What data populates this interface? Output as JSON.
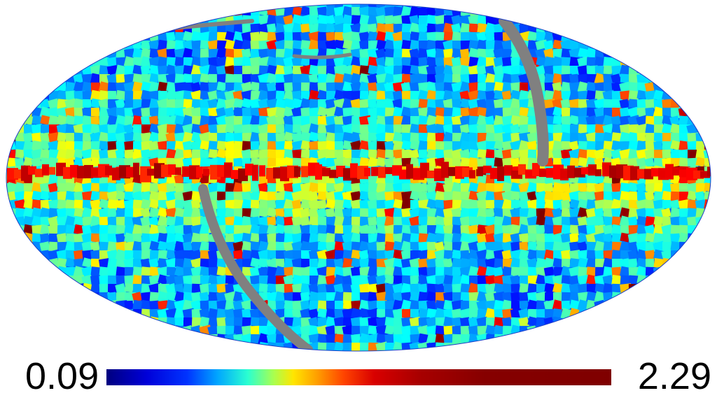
{
  "map": {
    "projection": "mollweide",
    "masked_color": "#808080",
    "colormap": "jet"
  },
  "colorbar": {
    "min_label": "0.09",
    "max_label": "2.29",
    "colors": [
      "#00007f",
      "#0000ff",
      "#00a6ff",
      "#2affd1",
      "#ffe600",
      "#ff7a00",
      "#d90000",
      "#7f0000"
    ]
  }
}
